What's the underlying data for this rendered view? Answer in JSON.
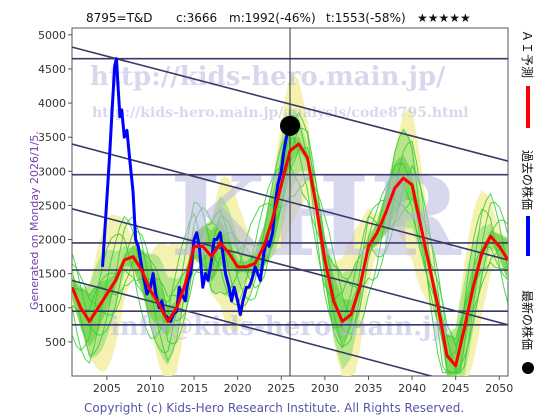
{
  "header": {
    "code": "8795=T&D",
    "current": "c:3666",
    "max": "m:1992(-46%)",
    "min": "t:1553(-58%)",
    "rating": "★★★★★"
  },
  "side_note": "Generated on Monday 2026/1/5.",
  "copyright": "Copyright (c) Kids-Hero Research Institute. All Rights Reserved.",
  "watermark": {
    "line1": "http://kids-hero.main.jp/",
    "line2": "http://kids-hero.main.jp/analysis/code8795.html",
    "big": "KHR",
    "bottom": "info@kids-hero.main.jp"
  },
  "legend": [
    {
      "label": "ＡＩ予測",
      "color": "#ff0000"
    },
    {
      "label": "過去の株価",
      "color": "#0000ff"
    },
    {
      "label": "最新の株価",
      "color": "#000000"
    }
  ],
  "colors": {
    "prediction": "#ff0000",
    "price": "#0000ff",
    "band_green": "#33cc33",
    "band_yellow": "#f4f1a8",
    "channel": "#3a3a6a"
  },
  "chart_data": {
    "type": "line",
    "xlim": [
      2001,
      2051
    ],
    "ylim": [
      0,
      5100
    ],
    "x_ticks": [
      2005,
      2010,
      2015,
      2020,
      2025,
      2030,
      2035,
      2040,
      2045,
      2050
    ],
    "y_ticks": [
      500,
      1000,
      1500,
      2000,
      2500,
      3000,
      3500,
      4000,
      4500,
      5000
    ],
    "latest_point": {
      "x": 2026,
      "y": 3666
    },
    "horizontal_lines": [
      4650,
      2950,
      1950,
      1553,
      950,
      750
    ],
    "channel_lines": [
      {
        "x": [
          2001,
          2051
        ],
        "y": [
          4820,
          3150
        ]
      },
      {
        "x": [
          2001,
          2051
        ],
        "y": [
          3400,
          1700
        ]
      },
      {
        "x": [
          2001,
          2051
        ],
        "y": [
          2450,
          750
        ]
      },
      {
        "x": [
          2001,
          2051
        ],
        "y": [
          1400,
          -300
        ]
      }
    ],
    "series": [
      {
        "name": "過去の株価",
        "x": [
          2004.5,
          2005,
          2005.3,
          2005.6,
          2005.9,
          2006.1,
          2006.3,
          2006.5,
          2006.7,
          2007,
          2007.3,
          2007.6,
          2008,
          2008.3,
          2008.6,
          2009,
          2009.3,
          2009.6,
          2010,
          2010.3,
          2010.6,
          2011,
          2011.3,
          2011.6,
          2012,
          2012.3,
          2012.6,
          2013,
          2013.3,
          2013.6,
          2014,
          2014.3,
          2014.6,
          2015,
          2015.3,
          2015.6,
          2016,
          2016.3,
          2016.6,
          2017,
          2017.3,
          2017.6,
          2018,
          2018.3,
          2018.6,
          2019,
          2019.3,
          2019.6,
          2020,
          2020.3,
          2020.6,
          2021,
          2021.3,
          2021.6,
          2022,
          2022.3,
          2022.6,
          2023,
          2023.3,
          2023.6,
          2024,
          2024.3,
          2024.6,
          2025,
          2025.3,
          2025.6,
          2026
        ],
        "y": [
          1600,
          2600,
          3200,
          3900,
          4550,
          4650,
          4200,
          3800,
          3900,
          3500,
          3600,
          3200,
          2700,
          2000,
          1900,
          1600,
          1400,
          1200,
          1300,
          1500,
          1200,
          1000,
          1100,
          900,
          850,
          800,
          900,
          950,
          1300,
          1200,
          1100,
          1400,
          1500,
          2000,
          2100,
          1900,
          1300,
          1500,
          1400,
          1700,
          2000,
          2000,
          2100,
          1800,
          1500,
          1300,
          1100,
          1300,
          1100,
          900,
          1100,
          1300,
          1300,
          1400,
          1600,
          1500,
          1400,
          1800,
          2000,
          1900,
          2100,
          2500,
          2800,
          3000,
          3300,
          3500,
          3666
        ]
      },
      {
        "name": "ＡＩ予測",
        "x": [
          2001,
          2002,
          2003,
          2004,
          2005,
          2006,
          2007,
          2008,
          2009,
          2010,
          2011,
          2012,
          2013,
          2014,
          2015,
          2016,
          2017,
          2018,
          2019,
          2020,
          2021,
          2022,
          2023,
          2024,
          2025,
          2026,
          2027,
          2028,
          2029,
          2030,
          2031,
          2032,
          2033,
          2034,
          2035,
          2036,
          2037,
          2038,
          2039,
          2040,
          2041,
          2042,
          2043,
          2044,
          2045,
          2046,
          2047,
          2048,
          2049,
          2050,
          2051
        ],
        "y": [
          1300,
          1000,
          800,
          1000,
          1200,
          1400,
          1700,
          1750,
          1550,
          1250,
          1050,
          800,
          1000,
          1350,
          1900,
          1900,
          1750,
          1950,
          1800,
          1600,
          1600,
          1650,
          1900,
          2300,
          2800,
          3300,
          3400,
          3200,
          2500,
          1700,
          1100,
          800,
          900,
          1300,
          1900,
          2100,
          2400,
          2750,
          2900,
          2800,
          2200,
          1600,
          1000,
          300,
          150,
          700,
          1300,
          1800,
          2050,
          1900,
          1700
        ]
      }
    ]
  }
}
